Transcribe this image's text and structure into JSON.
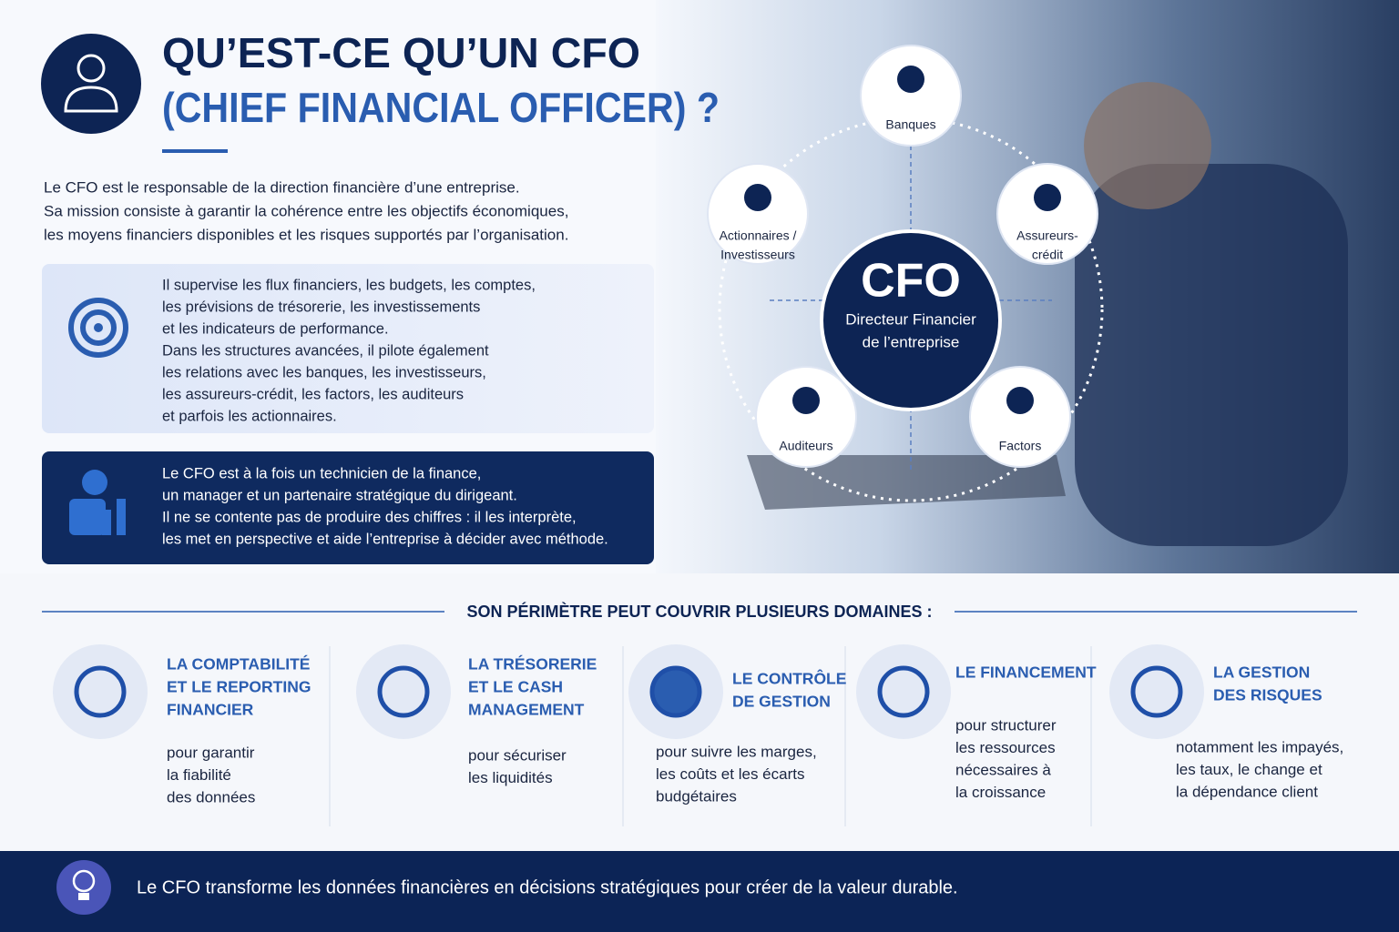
{
  "header": {
    "title_line1": "QU’EST-CE QU’UN CFO",
    "title_line2": "(CHIEF FINANCIAL OFFICER) ?"
  },
  "intro": {
    "lines": [
      "Le CFO est le responsable de la direction financière d’une entreprise.",
      "Sa mission consiste à garantir la cohérence entre les objectifs économiques,",
      "les moyens financiers disponibles et les risques supportés par l’organisation."
    ]
  },
  "box1": {
    "lines": [
      "Il supervise les flux financiers, les budgets, les comptes,",
      "les prévisions de trésorerie, les investissements",
      "et les indicateurs de performance.",
      "Dans les structures avancées, il pilote également",
      "les relations avec les banques, les investisseurs,",
      "les assureurs-crédit, les factors, les auditeurs",
      "et parfois les actionnaires."
    ]
  },
  "box2": {
    "lines": [
      "Le CFO est à la fois un technicien de la finance,",
      "un manager et un partenaire stratégique du dirigeant.",
      "Il ne se contente pas de produire des chiffres : il les interprète,",
      "les met en perspective et aide l’entreprise à décider avec méthode."
    ]
  },
  "diagram": {
    "center_title": "CFO",
    "center_subtitle": [
      "Directeur Financier",
      "de l’entreprise"
    ],
    "nodes": [
      {
        "label": [
          "Banques"
        ]
      },
      {
        "label": [
          "Actionnaires /",
          "Investisseurs"
        ]
      },
      {
        "label": [
          "Assureurs-",
          "crédit"
        ]
      },
      {
        "label": [
          "Auditeurs"
        ]
      },
      {
        "label": [
          "Factors"
        ]
      }
    ]
  },
  "domains": {
    "heading": "SON PÉRIMÈTRE PEUT COUVRIR PLUSIEURS DOMAINES :",
    "items": [
      {
        "title": [
          "LA COMPTABILITÉ",
          "ET LE REPORTING",
          "FINANCIER"
        ],
        "description": [
          "pour garantir",
          "la fiabilité",
          "des données"
        ]
      },
      {
        "title": [
          "LA TRÉSORERIE",
          "ET LE CASH",
          "MANAGEMENT"
        ],
        "description": [
          "pour sécuriser",
          "les liquidités"
        ]
      },
      {
        "title": [
          "LE CONTRÔLE",
          "DE GESTION"
        ],
        "description": [
          "pour suivre les marges,",
          "les coûts et les écarts",
          "budgétaires"
        ]
      },
      {
        "title": [
          "LE FINANCEMENT"
        ],
        "description": [
          "pour structurer",
          "les ressources",
          "nécessaires à",
          "la croissance"
        ]
      },
      {
        "title": [
          "LA GESTION",
          "DES RISQUES"
        ],
        "description": [
          "notamment les impayés,",
          "les taux, le change et",
          "la dépendance client"
        ]
      }
    ]
  },
  "footer": {
    "text": "Le CFO transforme les données financières en décisions stratégiques pour créer de la valeur durable."
  }
}
